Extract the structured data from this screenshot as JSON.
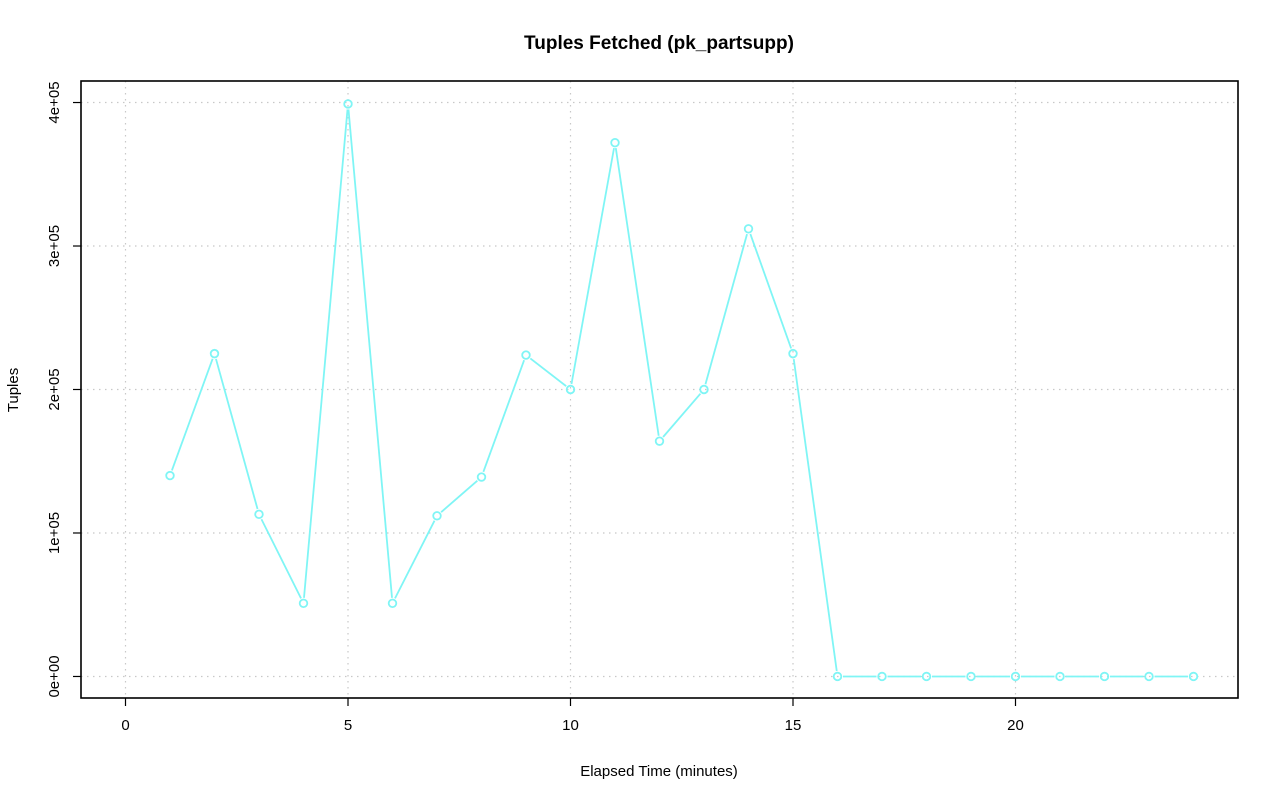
{
  "chart_data": {
    "type": "line",
    "title": "Tuples Fetched (pk_partsupp)",
    "xlabel": "Elapsed Time (minutes)",
    "ylabel": "Tuples",
    "xlim": [
      -1,
      25
    ],
    "ylim": [
      -15000,
      415000
    ],
    "x_ticks": [
      0,
      5,
      10,
      15,
      20
    ],
    "x_tick_labels": [
      "0",
      "5",
      "10",
      "15",
      "20"
    ],
    "y_ticks": [
      0,
      100000,
      200000,
      300000,
      400000
    ],
    "y_tick_labels": [
      "0e+00",
      "1e+05",
      "2e+05",
      "3e+05",
      "4e+05"
    ],
    "grid": true,
    "series": [
      {
        "color": "#7ff5f5",
        "x": [
          1,
          2,
          3,
          4,
          5,
          6,
          7,
          8,
          9,
          10,
          11,
          12,
          13,
          14,
          15,
          16,
          17,
          18,
          19,
          20,
          21,
          22,
          23,
          24
        ],
        "values": [
          140000,
          225000,
          113000,
          51000,
          399000,
          51000,
          112000,
          139000,
          224000,
          200000,
          372000,
          164000,
          200000,
          312000,
          225000,
          0,
          0,
          0,
          0,
          0,
          0,
          0,
          0,
          0
        ]
      }
    ]
  }
}
